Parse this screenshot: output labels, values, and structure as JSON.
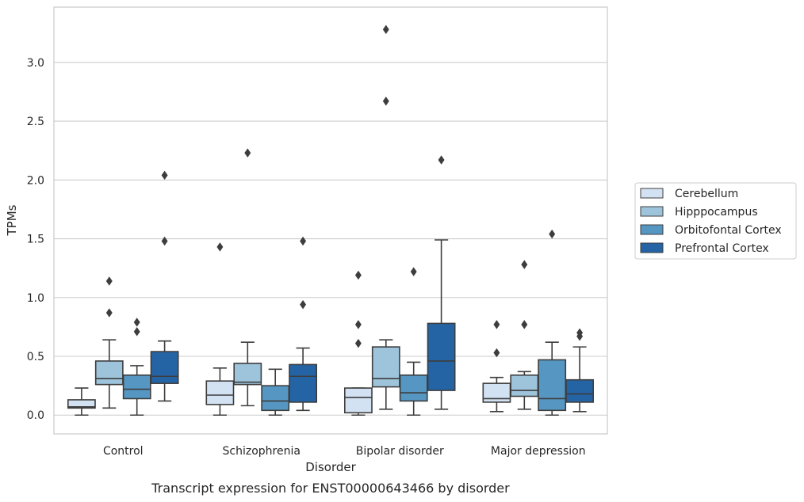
{
  "chart_data": {
    "type": "box",
    "caption": "Transcript expression for ENST00000643466 by disorder",
    "xlabel": "Disorder",
    "ylabel": "TPMs",
    "ylim": [
      -0.16,
      3.47
    ],
    "yticks": [
      "0.0",
      "0.5",
      "1.0",
      "1.5",
      "2.0",
      "2.5",
      "3.0"
    ],
    "grid": "horizontal",
    "legend_position": "right",
    "categories": [
      "Control",
      "Schizophrenia",
      "Bipolar disorder",
      "Major depression"
    ],
    "series": [
      {
        "name": "Cerebellum",
        "color": "#d3e2f2",
        "boxes": [
          {
            "whisker_low": 0.0,
            "q1": 0.06,
            "median": 0.07,
            "q3": 0.13,
            "whisker_high": 0.23,
            "outliers": []
          },
          {
            "whisker_low": 0.0,
            "q1": 0.09,
            "median": 0.17,
            "q3": 0.29,
            "whisker_high": 0.4,
            "outliers": [
              1.43
            ]
          },
          {
            "whisker_low": 0.0,
            "q1": 0.02,
            "median": 0.15,
            "q3": 0.23,
            "whisker_high": 0.23,
            "outliers": [
              0.61,
              0.77,
              1.19
            ]
          },
          {
            "whisker_low": 0.03,
            "q1": 0.11,
            "median": 0.14,
            "q3": 0.27,
            "whisker_high": 0.32,
            "outliers": [
              0.53,
              0.77
            ]
          }
        ]
      },
      {
        "name": "Hipppocampus",
        "color": "#9ec4dc",
        "boxes": [
          {
            "whisker_low": 0.06,
            "q1": 0.26,
            "median": 0.31,
            "q3": 0.46,
            "whisker_high": 0.64,
            "outliers": [
              0.87,
              1.14
            ]
          },
          {
            "whisker_low": 0.08,
            "q1": 0.26,
            "median": 0.28,
            "q3": 0.44,
            "whisker_high": 0.62,
            "outliers": [
              2.23
            ]
          },
          {
            "whisker_low": 0.05,
            "q1": 0.24,
            "median": 0.31,
            "q3": 0.58,
            "whisker_high": 0.64,
            "outliers": [
              2.67,
              3.28
            ]
          },
          {
            "whisker_low": 0.05,
            "q1": 0.16,
            "median": 0.21,
            "q3": 0.34,
            "whisker_high": 0.37,
            "outliers": [
              0.77,
              1.28
            ]
          }
        ]
      },
      {
        "name": "Orbitofontal Cortex",
        "color": "#5696c3",
        "boxes": [
          {
            "whisker_low": 0.0,
            "q1": 0.14,
            "median": 0.22,
            "q3": 0.34,
            "whisker_high": 0.42,
            "outliers": [
              0.71,
              0.79
            ]
          },
          {
            "whisker_low": 0.0,
            "q1": 0.04,
            "median": 0.12,
            "q3": 0.25,
            "whisker_high": 0.39,
            "outliers": []
          },
          {
            "whisker_low": 0.0,
            "q1": 0.12,
            "median": 0.19,
            "q3": 0.34,
            "whisker_high": 0.45,
            "outliers": [
              1.22
            ]
          },
          {
            "whisker_low": 0.0,
            "q1": 0.04,
            "median": 0.14,
            "q3": 0.47,
            "whisker_high": 0.62,
            "outliers": [
              1.54
            ]
          }
        ]
      },
      {
        "name": "Prefrontal Cortex",
        "color": "#2464a4",
        "boxes": [
          {
            "whisker_low": 0.12,
            "q1": 0.27,
            "median": 0.33,
            "q3": 0.54,
            "whisker_high": 0.63,
            "outliers": [
              1.48,
              2.04
            ]
          },
          {
            "whisker_low": 0.04,
            "q1": 0.11,
            "median": 0.33,
            "q3": 0.43,
            "whisker_high": 0.57,
            "outliers": [
              0.94,
              1.48
            ]
          },
          {
            "whisker_low": 0.05,
            "q1": 0.21,
            "median": 0.46,
            "q3": 0.78,
            "whisker_high": 1.49,
            "outliers": [
              2.17
            ]
          },
          {
            "whisker_low": 0.03,
            "q1": 0.11,
            "median": 0.18,
            "q3": 0.3,
            "whisker_high": 0.58,
            "outliers": [
              0.67,
              0.7
            ]
          }
        ]
      }
    ]
  }
}
